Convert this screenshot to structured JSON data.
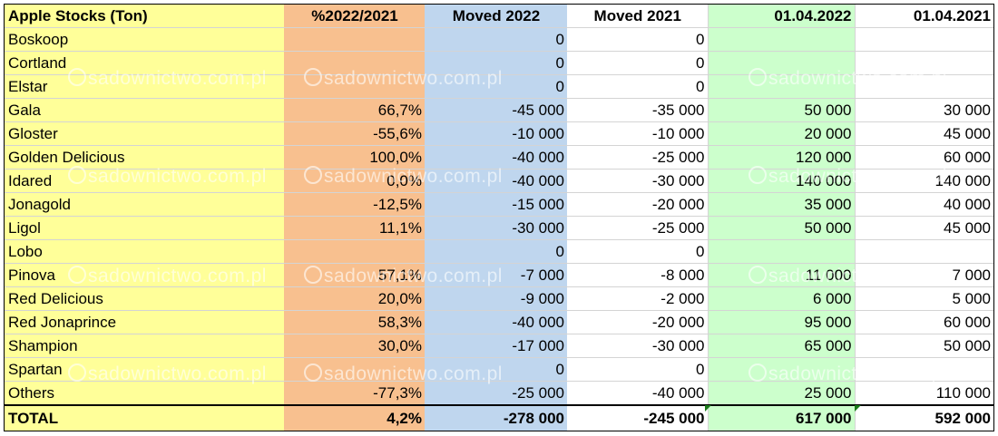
{
  "header": {
    "name": "Apple Stocks (Ton)",
    "pct": "%2022/2021",
    "moved2022": "Moved 2022",
    "moved2021": "Moved 2021",
    "stock2022": "01.04.2022",
    "stock2021": "01.04.2021"
  },
  "rows": [
    {
      "name": "Boskoop",
      "pct": "",
      "moved2022": "0",
      "moved2021": "0",
      "stock2022": "",
      "stock2021": ""
    },
    {
      "name": "Cortland",
      "pct": "",
      "moved2022": "0",
      "moved2021": "0",
      "stock2022": "",
      "stock2021": ""
    },
    {
      "name": "Elstar",
      "pct": "",
      "moved2022": "0",
      "moved2021": "0",
      "stock2022": "",
      "stock2021": ""
    },
    {
      "name": "Gala",
      "pct": "66,7%",
      "moved2022": "-45 000",
      "moved2021": "-35 000",
      "stock2022": "50 000",
      "stock2021": "30 000"
    },
    {
      "name": "Gloster",
      "pct": "-55,6%",
      "moved2022": "-10 000",
      "moved2021": "-10 000",
      "stock2022": "20 000",
      "stock2021": "45 000"
    },
    {
      "name": "Golden Delicious",
      "pct": "100,0%",
      "moved2022": "-40 000",
      "moved2021": "-25 000",
      "stock2022": "120 000",
      "stock2021": "60 000"
    },
    {
      "name": "Idared",
      "pct": "0,0%",
      "moved2022": "-40 000",
      "moved2021": "-30 000",
      "stock2022": "140 000",
      "stock2021": "140 000"
    },
    {
      "name": "Jonagold",
      "pct": "-12,5%",
      "moved2022": "-15 000",
      "moved2021": "-20 000",
      "stock2022": "35 000",
      "stock2021": "40 000"
    },
    {
      "name": "Ligol",
      "pct": "11,1%",
      "moved2022": "-30 000",
      "moved2021": "-25 000",
      "stock2022": "50 000",
      "stock2021": "45 000"
    },
    {
      "name": "Lobo",
      "pct": "",
      "moved2022": "0",
      "moved2021": "0",
      "stock2022": "",
      "stock2021": ""
    },
    {
      "name": "Pinova",
      "pct": "57,1%",
      "moved2022": "-7 000",
      "moved2021": "-8 000",
      "stock2022": "11 000",
      "stock2021": "7 000"
    },
    {
      "name": "Red Delicious",
      "pct": "20,0%",
      "moved2022": "-9 000",
      "moved2021": "-2 000",
      "stock2022": "6 000",
      "stock2021": "5 000"
    },
    {
      "name": "Red Jonaprince",
      "pct": "58,3%",
      "moved2022": "-40 000",
      "moved2021": "-20 000",
      "stock2022": "95 000",
      "stock2021": "60 000"
    },
    {
      "name": "Shampion",
      "pct": "30,0%",
      "moved2022": "-17 000",
      "moved2021": "-30 000",
      "stock2022": "65 000",
      "stock2021": "50 000"
    },
    {
      "name": "Spartan",
      "pct": "",
      "moved2022": "0",
      "moved2021": "0",
      "stock2022": "",
      "stock2021": ""
    },
    {
      "name": "Others",
      "pct": "-77,3%",
      "moved2022": "-25 000",
      "moved2021": "-40 000",
      "stock2022": "25 000",
      "stock2021": "110 000"
    }
  ],
  "total": {
    "name": "TOTAL",
    "pct": "4,2%",
    "moved2022": "-278 000",
    "moved2021": "-245 000",
    "stock2022": "617 000",
    "stock2021": "592 000"
  },
  "watermark": "sadownictwo.com.pl",
  "colors": {
    "name_col": "#ffff99",
    "pct_col": "#f8c08f",
    "moved2022_col": "#bfd6ee",
    "stock2022_col": "#ccffcc",
    "comment_marker": "#1a7a1a"
  }
}
